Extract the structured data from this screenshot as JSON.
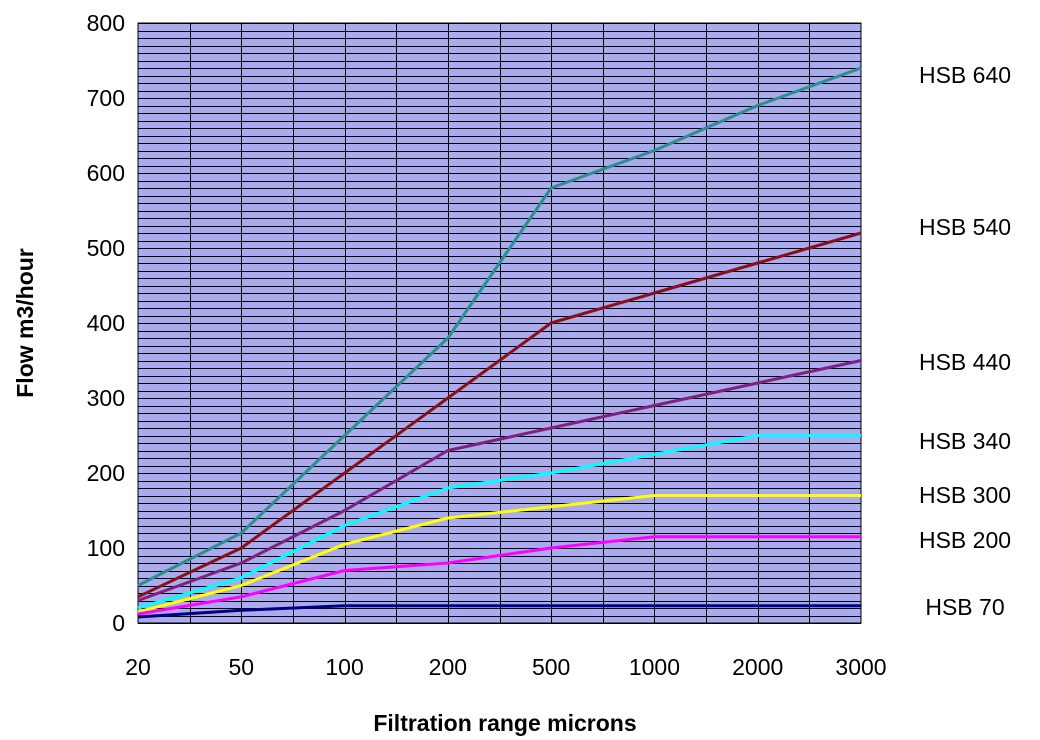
{
  "chart_data": {
    "type": "line",
    "title": "",
    "xlabel": "Filtration range microns",
    "ylabel": "Flow m3/hour",
    "categories": [
      "20",
      "50",
      "100",
      "200",
      "500",
      "1000",
      "2000",
      "3000"
    ],
    "ylim": [
      0,
      800
    ],
    "yticks": [
      "0",
      "100",
      "200",
      "300",
      "400",
      "500",
      "600",
      "700",
      "800"
    ],
    "grid": true,
    "plot_background": "#aaaaee",
    "series": [
      {
        "name": "HSB 640",
        "color": "#2a8f8f",
        "values": [
          50,
          120,
          250,
          380,
          580,
          630,
          690,
          740
        ]
      },
      {
        "name": "HSB 540",
        "color": "#8b0f1a",
        "values": [
          35,
          100,
          200,
          300,
          400,
          440,
          480,
          520
        ]
      },
      {
        "name": "HSB 440",
        "color": "#80207f",
        "values": [
          30,
          80,
          150,
          230,
          260,
          290,
          320,
          350
        ]
      },
      {
        "name": "HSB 340",
        "color": "#00ffff",
        "values": [
          20,
          60,
          130,
          180,
          200,
          225,
          250,
          250
        ]
      },
      {
        "name": "HSB 300",
        "color": "#ffff00",
        "values": [
          15,
          50,
          105,
          140,
          155,
          170,
          170,
          170
        ]
      },
      {
        "name": "HSB 200",
        "color": "#ff00ff",
        "values": [
          12,
          35,
          70,
          80,
          100,
          115,
          115,
          115
        ]
      },
      {
        "name": "HSB 70",
        "color": "#000080",
        "values": [
          8,
          17,
          23,
          23,
          23,
          23,
          23,
          23
        ]
      }
    ]
  }
}
